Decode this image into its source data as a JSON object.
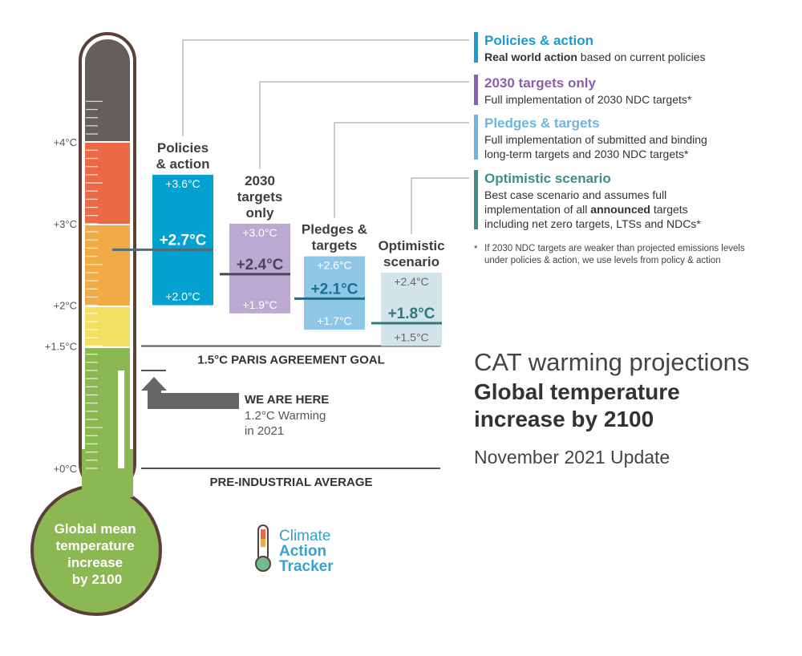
{
  "chart_data": {
    "type": "range-bar",
    "title": "CAT warming projections",
    "subtitle": "Global temperature increase by 2100",
    "update": "November 2021 Update",
    "axis_ticks": [
      "+4°C",
      "+3°C",
      "+2°C",
      "+1.5°C",
      "+0°C"
    ],
    "axis_values": [
      4,
      3,
      2,
      1.5,
      0
    ],
    "ylim": [
      0,
      4.6
    ],
    "thermometer_label": [
      "Global mean",
      "temperature",
      "increase",
      "by 2100"
    ],
    "scenarios": [
      {
        "label": [
          "Policies",
          "& action"
        ],
        "high": 3.6,
        "mid": 2.7,
        "low": 2.0,
        "high_label": "+3.6°C",
        "mid_label": "+2.7°C",
        "low_label": "+2.0°C",
        "color": "#03a1d0",
        "text_color": "#ffffff",
        "mid_color": "#ffffff",
        "line_color": "#546a79"
      },
      {
        "label": [
          "2030",
          "targets",
          "only"
        ],
        "high": 3.0,
        "mid": 2.4,
        "low": 1.9,
        "high_label": "+3.0°C",
        "mid_label": "+2.4°C",
        "low_label": "+1.9°C",
        "color": "#bca9d1",
        "text_color": "#ffffff",
        "mid_color": "#4b4458",
        "line_color": "#4b4458"
      },
      {
        "label": [
          "Pledges &",
          "targets"
        ],
        "high": 2.6,
        "mid": 2.1,
        "low": 1.7,
        "high_label": "+2.6°C",
        "mid_label": "+2.1°C",
        "low_label": "+1.7°C",
        "color": "#8fc8e6",
        "text_color": "#ffffff",
        "mid_color": "#17718f",
        "line_color": "#17718f"
      },
      {
        "label": [
          "Optimistic",
          "scenario"
        ],
        "high": 2.4,
        "mid": 1.8,
        "low": 1.5,
        "high_label": "+2.4°C",
        "mid_label": "+1.8°C",
        "low_label": "+1.5°C",
        "color": "#d3e3ea",
        "text_color": "#666666",
        "mid_color": "#2e7a78",
        "line_color": "#2e7a78"
      }
    ],
    "reference_lines": [
      {
        "value": 1.5,
        "label": "1.5°C PARIS AGREEMENT GOAL"
      },
      {
        "value": 0,
        "label": "PRE-INDUSTRIAL AVERAGE"
      }
    ],
    "current": {
      "value": 1.2,
      "title": "WE ARE HERE",
      "line1": "1.2°C Warming",
      "line2": "in 2021"
    }
  },
  "legend": [
    {
      "title": "Policies & action",
      "color": "#1a9ad1",
      "lines": [
        [
          {
            "b": "Real world action"
          },
          {
            "t": " based on current policies"
          }
        ]
      ]
    },
    {
      "title": "2030 targets only",
      "color": "#8a5fb0",
      "lines": [
        [
          {
            "t": "Full implementation of 2030 NDC targets*"
          }
        ]
      ]
    },
    {
      "title": "Pledges & targets",
      "color": "#6db5e0",
      "lines": [
        [
          {
            "t": "Full implementation of submitted and binding"
          }
        ],
        [
          {
            "t": "long-term targets and 2030 NDC targets*"
          }
        ]
      ]
    },
    {
      "title": "Optimistic scenario",
      "color": "#3e8c8c",
      "lines": [
        [
          {
            "t": "Best case scenario and assumes full"
          }
        ],
        [
          {
            "t": "implementation of all "
          },
          {
            "b": "announced"
          },
          {
            "t": " targets"
          }
        ],
        [
          {
            "t": "including net zero targets, LTSs and NDCs*"
          }
        ]
      ]
    }
  ],
  "footnote": [
    "If 2030 NDC targets are weaker than projected emissions levels",
    "under policies & action, we use levels from policy & action"
  ],
  "logo": [
    "Climate",
    "Action",
    "Tracker"
  ]
}
